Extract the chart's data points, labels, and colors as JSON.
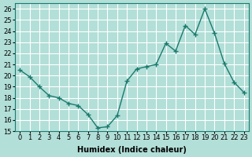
{
  "x": [
    0,
    1,
    2,
    3,
    4,
    5,
    6,
    7,
    8,
    9,
    10,
    11,
    12,
    13,
    14,
    15,
    16,
    17,
    18,
    19,
    20,
    21,
    22,
    23
  ],
  "y": [
    20.5,
    19.9,
    19.0,
    18.2,
    18.0,
    17.5,
    17.3,
    16.5,
    15.3,
    15.4,
    16.4,
    19.5,
    20.6,
    20.8,
    21.0,
    22.9,
    22.2,
    24.5,
    23.7,
    26.0,
    23.8,
    21.1,
    19.4,
    18.5
  ],
  "xlabel": "Humidex (Indice chaleur)",
  "xlim": [
    -0.5,
    23.5
  ],
  "ylim": [
    15,
    26.5
  ],
  "yticks": [
    15,
    16,
    17,
    18,
    19,
    20,
    21,
    22,
    23,
    24,
    25,
    26
  ],
  "xticks": [
    0,
    1,
    2,
    3,
    4,
    5,
    6,
    7,
    8,
    9,
    10,
    11,
    12,
    13,
    14,
    15,
    16,
    17,
    18,
    19,
    20,
    21,
    22,
    23
  ],
  "line_color": "#1a7a6e",
  "marker": "+",
  "bg_color": "#b2dfd8",
  "grid_color": "#ffffff",
  "label_fontsize": 7,
  "tick_fontsize": 6
}
